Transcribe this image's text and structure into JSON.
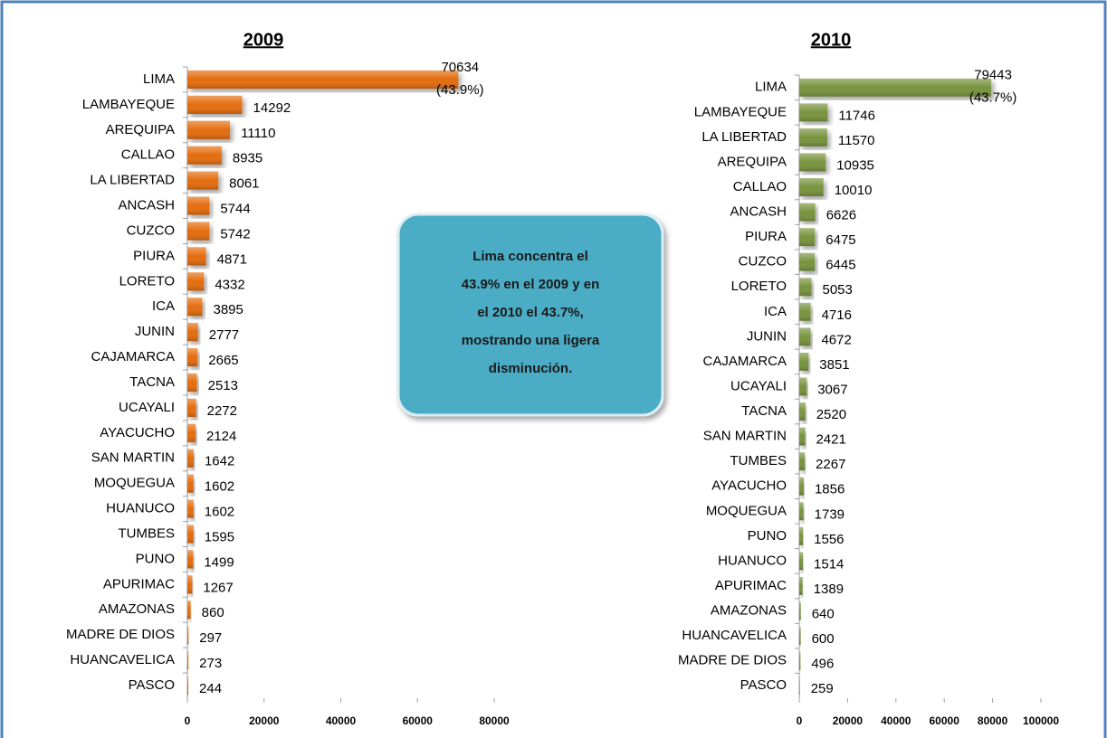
{
  "chart_data": [
    {
      "type": "bar",
      "orientation": "horizontal",
      "title": "2009",
      "annotation": "(43.9%)",
      "color": "#e46c0a",
      "categories": [
        "LIMA",
        "LAMBAYEQUE",
        "AREQUIPA",
        "CALLAO",
        "LA LIBERTAD",
        "ANCASH",
        "CUZCO",
        "PIURA",
        "LORETO",
        "ICA",
        "JUNIN",
        "CAJAMARCA",
        "TACNA",
        "UCAYALI",
        "AYACUCHO",
        "SAN MARTIN",
        "MOQUEGUA",
        "HUANUCO",
        "TUMBES",
        "PUNO",
        "APURIMAC",
        "AMAZONAS",
        "MADRE DE DIOS",
        "HUANCAVELICA",
        "PASCO"
      ],
      "values": [
        70634,
        14292,
        11110,
        8935,
        8061,
        5744,
        5742,
        4871,
        4332,
        3895,
        2777,
        2665,
        2513,
        2272,
        2124,
        1642,
        1602,
        1602,
        1595,
        1499,
        1267,
        860,
        297,
        273,
        244
      ],
      "xlim": [
        0,
        80000
      ],
      "xticks": [
        0,
        20000,
        40000,
        60000,
        80000
      ]
    },
    {
      "type": "bar",
      "orientation": "horizontal",
      "title": "2010",
      "annotation": "(43.7%)",
      "color": "#77933c",
      "categories": [
        "LIMA",
        "LAMBAYEQUE",
        "LA LIBERTAD",
        "AREQUIPA",
        "CALLAO",
        "ANCASH",
        "PIURA",
        "CUZCO",
        "LORETO",
        "ICA",
        "JUNIN",
        "CAJAMARCA",
        "UCAYALI",
        "TACNA",
        "SAN MARTIN",
        "TUMBES",
        "AYACUCHO",
        "MOQUEGUA",
        "PUNO",
        "HUANUCO",
        "APURIMAC",
        "AMAZONAS",
        "HUANCAVELICA",
        "MADRE DE DIOS",
        "PASCO"
      ],
      "values": [
        79443,
        11746,
        11570,
        10935,
        10010,
        6626,
        6475,
        6445,
        5053,
        4716,
        4672,
        3851,
        3067,
        2520,
        2421,
        2267,
        1856,
        1739,
        1556,
        1514,
        1389,
        640,
        600,
        496,
        259
      ],
      "xlim": [
        0,
        100000
      ],
      "xticks": [
        0,
        20000,
        40000,
        60000,
        80000,
        100000
      ]
    }
  ],
  "callout": [
    "Lima concentra el",
    "43.9% en el 2009 y en",
    "el 2010 el  43.7%,",
    "mostrando una ligera",
    "disminución."
  ]
}
